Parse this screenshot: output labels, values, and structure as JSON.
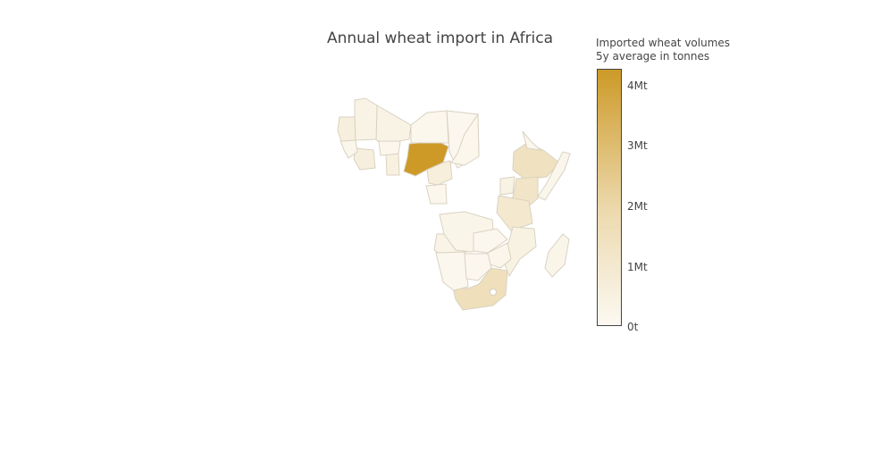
{
  "title": "Annual wheat import in Africa",
  "legend": {
    "title_line1": "Imported wheat volumes",
    "title_line2": "5y average in tonnes",
    "scale_min_color": "#fcf9f2",
    "scale_max_color": "#cd9a28",
    "border_color": "#d9d2c2",
    "max_value_tonnes": 4300000,
    "ticks": [
      {
        "label": "4Mt",
        "value": 4000000
      },
      {
        "label": "3Mt",
        "value": 3000000
      },
      {
        "label": "2Mt",
        "value": 2000000
      },
      {
        "label": "1Mt",
        "value": 1000000
      },
      {
        "label": "0t",
        "value": 0
      }
    ]
  },
  "chart_data": {
    "type": "choropleth",
    "title": "Annual wheat import in Africa",
    "colorbar_title": "Imported wheat volumes 5y average in tonnes",
    "range": [
      0,
      4300000
    ],
    "regions": [
      {
        "id": "nigeria",
        "value": 4300000
      },
      {
        "id": "south-africa",
        "value": 1550000
      },
      {
        "id": "ethiopia",
        "value": 1400000
      },
      {
        "id": "kenya",
        "value": 1200000
      },
      {
        "id": "tanzania",
        "value": 1000000
      },
      {
        "id": "mali",
        "value": 350000
      },
      {
        "id": "mauritania",
        "value": 350000
      },
      {
        "id": "senegal",
        "value": 600000
      },
      {
        "id": "cote-divoire",
        "value": 600000
      },
      {
        "id": "ghana",
        "value": 500000
      },
      {
        "id": "cameroon",
        "value": 650000
      },
      {
        "id": "niger",
        "value": 150000
      },
      {
        "id": "chad",
        "value": 100000
      },
      {
        "id": "sudan-south",
        "value": 150000
      },
      {
        "id": "angola",
        "value": 300000
      },
      {
        "id": "drc",
        "value": 250000
      },
      {
        "id": "mozambique",
        "value": 450000
      },
      {
        "id": "madagascar",
        "value": 250000
      },
      {
        "id": "zimbabwe",
        "value": 200000
      },
      {
        "id": "zambia",
        "value": 100000
      },
      {
        "id": "namibia",
        "value": 100000
      },
      {
        "id": "botswana",
        "value": 100000
      },
      {
        "id": "uganda",
        "value": 350000
      },
      {
        "id": "somalia",
        "value": 200000
      },
      {
        "id": "eritrea",
        "value": 150000
      },
      {
        "id": "gabon-congo",
        "value": 150000
      },
      {
        "id": "burkina",
        "value": 150000
      },
      {
        "id": "guinea",
        "value": 200000
      }
    ]
  }
}
